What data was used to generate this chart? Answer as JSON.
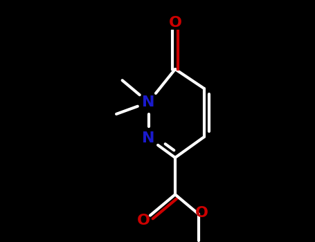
{
  "bg_color": "#000000",
  "bond_color": "#ffffff",
  "N_color": "#1a1acd",
  "O_color": "#cc0000",
  "lw": 3.0,
  "font_size": 16,
  "fig_width": 4.55,
  "fig_height": 3.5,
  "dpi": 100,
  "xlim": [
    -2.5,
    2.5
  ],
  "ylim": [
    -2.2,
    2.4
  ]
}
